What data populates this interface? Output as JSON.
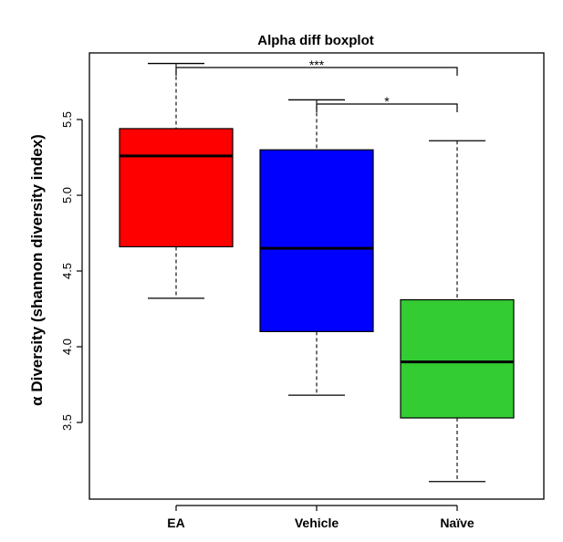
{
  "chart_data": {
    "type": "boxplot",
    "title": "Alpha diff boxplot",
    "xlabel": "",
    "ylabel": "α Diversity (shannon diversity index)",
    "ylim": [
      3.1,
      5.95
    ],
    "yticks": [
      3.5,
      4.0,
      4.5,
      5.0,
      5.5
    ],
    "ytick_labels": [
      "3.5",
      "4.0",
      "4.5",
      "5.0",
      "5.5"
    ],
    "grid": false,
    "categories": [
      "EA",
      "Vehicle",
      "Naïve"
    ],
    "boxes": [
      {
        "category": "EA",
        "color": "#ff0000",
        "whisker_low": 4.32,
        "q1": 4.66,
        "median": 5.26,
        "q3": 5.44,
        "whisker_high": 5.87
      },
      {
        "category": "Vehicle",
        "color": "#0000ff",
        "whisker_low": 3.68,
        "q1": 4.1,
        "median": 4.65,
        "q3": 5.3,
        "whisker_high": 5.63
      },
      {
        "category": "Naïve",
        "color": "#33cc33",
        "whisker_low": 3.11,
        "q1": 3.53,
        "median": 3.9,
        "q3": 4.31,
        "whisker_high": 5.36
      }
    ],
    "significance": [
      {
        "from": "EA",
        "to": "Naïve",
        "label": "***"
      },
      {
        "from": "Vehicle",
        "to": "Naïve",
        "label": "*"
      }
    ]
  }
}
